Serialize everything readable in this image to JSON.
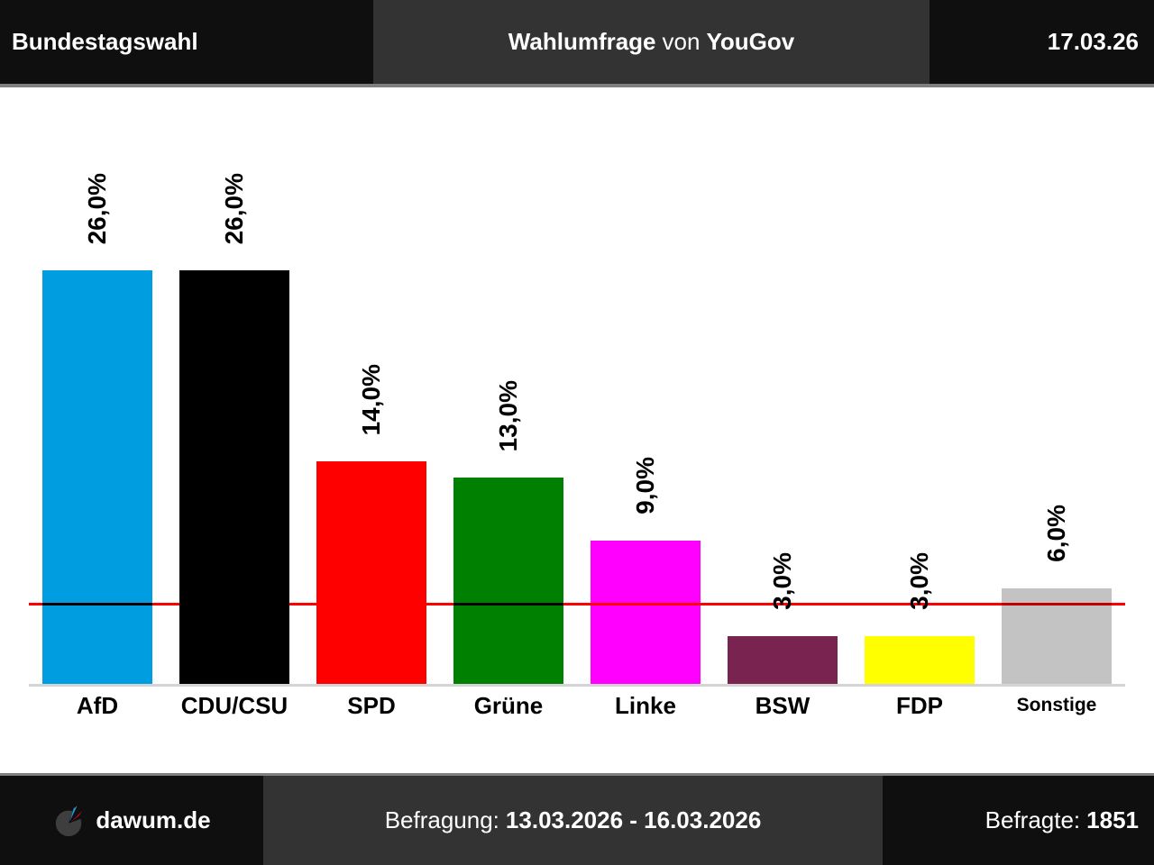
{
  "header": {
    "election": "Bundestagswahl",
    "title_bold1": "Wahlumfrage",
    "title_regular": "von",
    "title_bold2": "YouGov",
    "date": "17.03.26"
  },
  "chart_data": {
    "type": "bar",
    "title": "Wahlumfrage von YouGov",
    "categories": [
      "AfD",
      "CDU/CSU",
      "SPD",
      "Grüne",
      "Linke",
      "BSW",
      "FDP",
      "Sonstige"
    ],
    "values": [
      26.0,
      26.0,
      14.0,
      13.0,
      9.0,
      3.0,
      3.0,
      6.0
    ],
    "value_labels": [
      "26,0%",
      "26,0%",
      "14,0%",
      "13,0%",
      "9,0%",
      "3,0%",
      "3,0%",
      "6,0%"
    ],
    "bar_colors": [
      "#009EE0",
      "#000000",
      "#FF0000",
      "#008000",
      "#FF00FF",
      "#792350",
      "#FFFF00",
      "#C3C3C3"
    ],
    "threshold_line": {
      "value": 5.0,
      "color": "#FF0000"
    },
    "xlabel": "",
    "ylabel": "",
    "ylim": [
      0,
      30
    ],
    "grid": false,
    "legend": false
  },
  "footer": {
    "brand": "dawum.de",
    "survey_label": "Befragung:",
    "survey_period": "13.03.2026 - 16.03.2026",
    "respondents_label": "Befragte:",
    "respondents_value": "1851"
  },
  "colors": {
    "header_dark": "#0F0F0F",
    "header_gray": "#333333",
    "separator": "#7F7F7F",
    "axis_line": "#D5D5D5",
    "background": "#FFFFFF",
    "logo_blue": "#1E9CD7",
    "logo_red": "#E4032E"
  }
}
